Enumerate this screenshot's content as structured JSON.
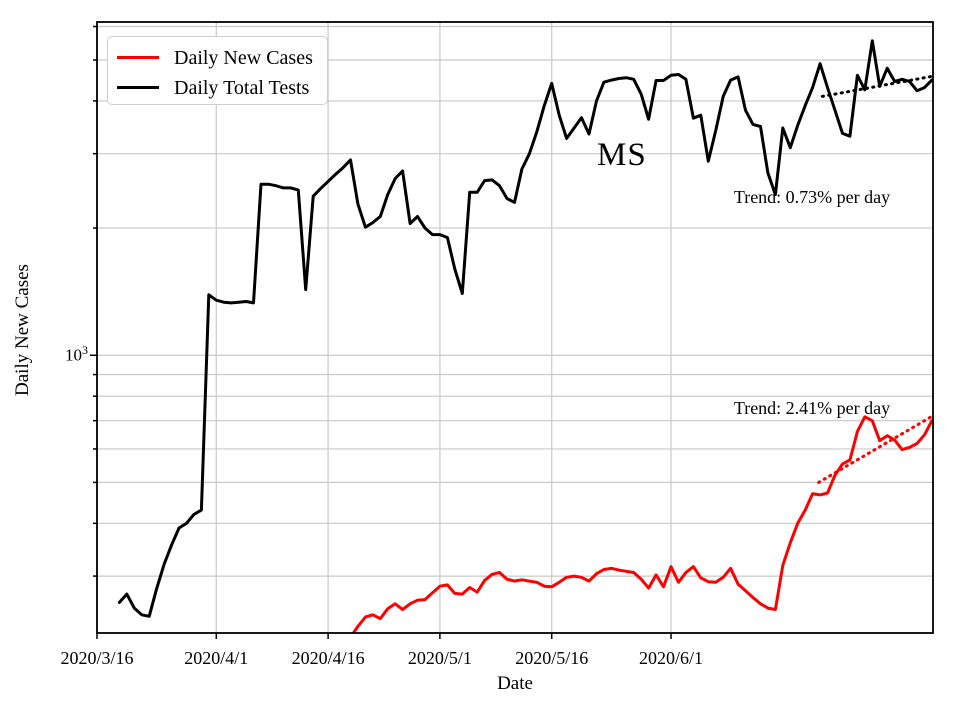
{
  "chart_data": {
    "type": "line",
    "title": "",
    "xlabel": "Date",
    "ylabel": "Daily New Cases",
    "yscale": "log",
    "ylim": [
      220,
      6150
    ],
    "xlim_days": [
      0,
      112.2
    ],
    "grid_color": "#c9c9c9",
    "axis_color": "#000000",
    "xticks": [
      {
        "day": 0,
        "label": "2020/3/16"
      },
      {
        "day": 16,
        "label": "2020/4/1"
      },
      {
        "day": 31,
        "label": "2020/4/16"
      },
      {
        "day": 46,
        "label": "2020/5/1"
      },
      {
        "day": 61,
        "label": "2020/5/16"
      },
      {
        "day": 77,
        "label": "2020/6/1"
      }
    ],
    "ytick": {
      "base": "10",
      "exponent": "3",
      "value": 1000
    },
    "ygrid_values": [
      300,
      400,
      500,
      600,
      700,
      800,
      900,
      1000,
      2000,
      3000,
      4000,
      5000,
      6000
    ],
    "annotations": {
      "state": "MS"
    },
    "series": [
      {
        "name": "Daily New Cases",
        "color": "#ff0000",
        "points": [
          [
            34,
            215
          ],
          [
            35,
            228
          ],
          [
            36,
            240
          ],
          [
            37,
            243
          ],
          [
            38,
            238
          ],
          [
            39,
            251
          ],
          [
            40,
            258
          ],
          [
            41,
            250
          ],
          [
            42,
            258
          ],
          [
            43,
            263
          ],
          [
            44,
            264
          ],
          [
            45,
            274
          ],
          [
            46,
            284
          ],
          [
            47,
            286
          ],
          [
            48,
            273
          ],
          [
            49,
            272
          ],
          [
            50,
            282
          ],
          [
            51,
            275
          ],
          [
            52,
            293
          ],
          [
            53,
            303
          ],
          [
            54,
            306
          ],
          [
            55,
            295
          ],
          [
            56,
            292
          ],
          [
            57,
            294
          ],
          [
            58,
            292
          ],
          [
            59,
            290
          ],
          [
            60,
            284
          ],
          [
            61,
            283
          ],
          [
            62,
            290
          ],
          [
            63,
            298
          ],
          [
            64,
            300
          ],
          [
            65,
            298
          ],
          [
            66,
            292
          ],
          [
            67,
            304
          ],
          [
            68,
            311
          ],
          [
            69,
            313
          ],
          [
            70,
            310
          ],
          [
            71,
            308
          ],
          [
            72,
            306
          ],
          [
            73,
            295
          ],
          [
            74,
            281
          ],
          [
            75,
            302
          ],
          [
            76,
            283
          ],
          [
            77,
            316
          ],
          [
            78,
            290
          ],
          [
            79,
            306
          ],
          [
            80,
            316
          ],
          [
            81,
            297
          ],
          [
            82,
            291
          ],
          [
            83,
            290
          ],
          [
            84,
            298
          ],
          [
            85,
            313
          ],
          [
            86,
            287
          ],
          [
            87,
            277
          ],
          [
            88,
            267
          ],
          [
            89,
            258
          ],
          [
            90,
            252
          ],
          [
            91,
            250
          ],
          [
            92,
            318
          ],
          [
            93,
            360
          ],
          [
            94,
            400
          ],
          [
            95,
            430
          ],
          [
            96,
            470
          ],
          [
            97,
            467
          ],
          [
            98,
            472
          ],
          [
            99,
            520
          ],
          [
            100,
            553
          ],
          [
            101,
            565
          ],
          [
            102,
            660
          ],
          [
            103,
            715
          ],
          [
            104,
            700
          ],
          [
            105,
            628
          ],
          [
            106,
            645
          ],
          [
            107,
            630
          ],
          [
            108,
            598
          ],
          [
            109,
            605
          ],
          [
            110,
            618
          ],
          [
            111,
            648
          ],
          [
            112,
            700
          ]
        ]
      },
      {
        "name": "Daily Total Tests",
        "color": "#000000",
        "points": [
          [
            3,
            260
          ],
          [
            4,
            272
          ],
          [
            5,
            252
          ],
          [
            6,
            243
          ],
          [
            7,
            241
          ],
          [
            8,
            280
          ],
          [
            9,
            320
          ],
          [
            10,
            355
          ],
          [
            11,
            390
          ],
          [
            12,
            400
          ],
          [
            13,
            420
          ],
          [
            14,
            430
          ],
          [
            15,
            1390
          ],
          [
            16,
            1350
          ],
          [
            17,
            1335
          ],
          [
            18,
            1330
          ],
          [
            19,
            1335
          ],
          [
            20,
            1340
          ],
          [
            21,
            1330
          ],
          [
            22,
            2540
          ],
          [
            23,
            2540
          ],
          [
            24,
            2520
          ],
          [
            25,
            2490
          ],
          [
            26,
            2490
          ],
          [
            27,
            2460
          ],
          [
            28,
            1430
          ],
          [
            29,
            2380
          ],
          [
            30,
            2480
          ],
          [
            31,
            2580
          ],
          [
            32,
            2680
          ],
          [
            33,
            2780
          ],
          [
            34,
            2900
          ],
          [
            35,
            2280
          ],
          [
            36,
            2010
          ],
          [
            37,
            2060
          ],
          [
            38,
            2130
          ],
          [
            39,
            2400
          ],
          [
            40,
            2620
          ],
          [
            41,
            2730
          ],
          [
            42,
            2050
          ],
          [
            43,
            2130
          ],
          [
            44,
            2000
          ],
          [
            45,
            1930
          ],
          [
            46,
            1930
          ],
          [
            47,
            1900
          ],
          [
            48,
            1600
          ],
          [
            49,
            1400
          ],
          [
            50,
            2430
          ],
          [
            51,
            2430
          ],
          [
            52,
            2590
          ],
          [
            53,
            2600
          ],
          [
            54,
            2520
          ],
          [
            55,
            2350
          ],
          [
            56,
            2300
          ],
          [
            57,
            2760
          ],
          [
            58,
            3000
          ],
          [
            59,
            3380
          ],
          [
            60,
            3900
          ],
          [
            61,
            4400
          ],
          [
            62,
            3700
          ],
          [
            63,
            3260
          ],
          [
            64,
            3450
          ],
          [
            65,
            3650
          ],
          [
            66,
            3340
          ],
          [
            67,
            4000
          ],
          [
            68,
            4430
          ],
          [
            69,
            4480
          ],
          [
            70,
            4520
          ],
          [
            71,
            4540
          ],
          [
            72,
            4500
          ],
          [
            73,
            4150
          ],
          [
            74,
            3620
          ],
          [
            75,
            4470
          ],
          [
            76,
            4470
          ],
          [
            77,
            4600
          ],
          [
            78,
            4620
          ],
          [
            79,
            4500
          ],
          [
            80,
            3640
          ],
          [
            81,
            3700
          ],
          [
            82,
            2880
          ],
          [
            83,
            3400
          ],
          [
            84,
            4100
          ],
          [
            85,
            4480
          ],
          [
            86,
            4560
          ],
          [
            87,
            3800
          ],
          [
            88,
            3520
          ],
          [
            89,
            3480
          ],
          [
            90,
            2700
          ],
          [
            91,
            2400
          ],
          [
            92,
            3450
          ],
          [
            93,
            3100
          ],
          [
            94,
            3500
          ],
          [
            95,
            3900
          ],
          [
            96,
            4300
          ],
          [
            97,
            4900
          ],
          [
            98,
            4300
          ],
          [
            99,
            3800
          ],
          [
            100,
            3350
          ],
          [
            101,
            3300
          ],
          [
            102,
            4600
          ],
          [
            103,
            4250
          ],
          [
            104,
            5550
          ],
          [
            105,
            4330
          ],
          [
            106,
            4780
          ],
          [
            107,
            4450
          ],
          [
            108,
            4500
          ],
          [
            109,
            4450
          ],
          [
            110,
            4230
          ],
          [
            111,
            4300
          ],
          [
            112,
            4480
          ]
        ]
      }
    ],
    "trendlines": [
      {
        "series": "Daily Total Tests",
        "label": "Trend: 0.73% per day",
        "rate_percent_per_day": 0.73,
        "color": "#000000",
        "points": [
          [
            97.3,
            4100
          ],
          [
            112.2,
            4580
          ]
        ]
      },
      {
        "series": "Daily New Cases",
        "label": "Trend: 2.41% per day",
        "rate_percent_per_day": 2.41,
        "color": "#ff0000",
        "points": [
          [
            96.8,
            500
          ],
          [
            112.2,
            720
          ]
        ]
      }
    ]
  }
}
